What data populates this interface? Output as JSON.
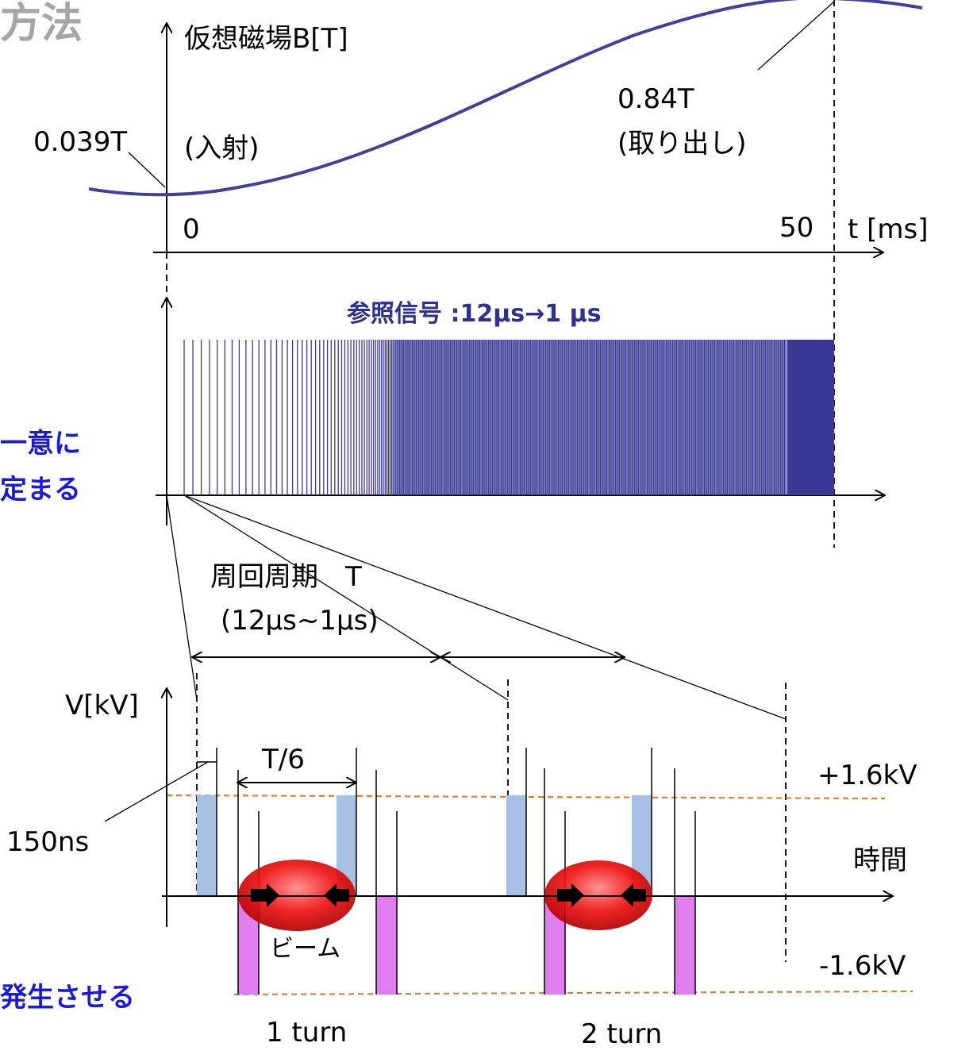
{
  "colors": {
    "curve": "#414199",
    "pulse": "#3a3a96",
    "pos_pulse": "#a7c0e3",
    "neg_pulse": "#e07ef0",
    "dash_level": "#e07820",
    "beam": "#ee1111",
    "left_text": "#1a1adf",
    "header_text": "#2e3192",
    "title_text": "#a6a6a6"
  },
  "title_partial": "方法",
  "left_partial": {
    "line1": "一意に",
    "line2": "定まる",
    "line3": "発生させる"
  },
  "field": {
    "axis_label": "仮想磁場B[T]",
    "inject_value": "0.039T",
    "inject_label": "(入射)",
    "extract_value": "0.84T",
    "extract_label": "(取り出し)",
    "t_start": "0",
    "t_end": "50",
    "time_axis_label": "t [ms]"
  },
  "reference": {
    "label": "参照信号 :12μs→1 μs"
  },
  "period": {
    "label_line1": "周回周期　T",
    "label_line2": "(12μs~1μs)"
  },
  "voltage": {
    "axis_label": "V[kV]",
    "plus_level": "+1.6kV",
    "minus_level": "-1.6kV",
    "time_label": "時間",
    "pulse_width": "150ns",
    "spacing_label": "T/6",
    "beam_label": "ビーム",
    "turn1": "1 turn",
    "turn2": "2 turn"
  }
}
